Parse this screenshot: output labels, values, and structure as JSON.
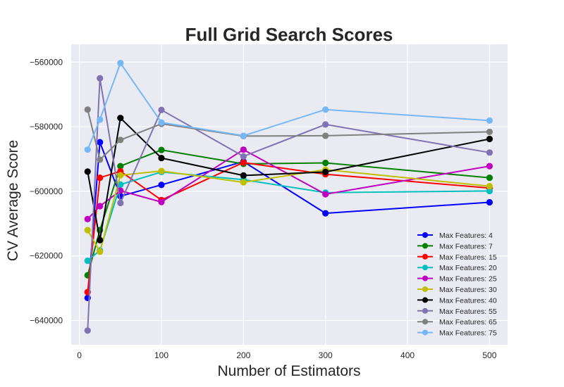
{
  "chart_data": {
    "type": "line",
    "title": "Full Grid Search Scores",
    "xlabel": "Number of Estimators",
    "ylabel": "CV Average Score",
    "xlim": [
      -10,
      522
    ],
    "ylim": [
      -647500,
      -554500
    ],
    "xticks": [
      0,
      100,
      200,
      300,
      400,
      500
    ],
    "xtick_labels": [
      "0",
      "100",
      "200",
      "300",
      "400",
      "500"
    ],
    "yticks": [
      -640000,
      -620000,
      -600000,
      -580000,
      -560000
    ],
    "ytick_labels": [
      "−640000",
      "−620000",
      "−600000",
      "−580000",
      "−560000"
    ],
    "grid": true,
    "legend_position": "lower-right",
    "background": "#eaeaf2",
    "x": [
      10,
      25,
      50,
      100,
      200,
      300,
      500
    ],
    "series": [
      {
        "name": "Max Features: 4",
        "color": "#0000ff",
        "values": [
          -633000,
          -584800,
          -601500,
          -598000,
          -590800,
          -606800,
          -603400
        ]
      },
      {
        "name": "Max Features: 7",
        "color": "#008000",
        "values": [
          -626000,
          -612000,
          -592200,
          -587200,
          -591500,
          -591200,
          -595800
        ]
      },
      {
        "name": "Max Features: 15",
        "color": "#ff0000",
        "values": [
          -631200,
          -595800,
          -593800,
          -602700,
          -591100,
          -594700,
          -599000
        ]
      },
      {
        "name": "Max Features: 20",
        "color": "#00bfbf",
        "values": [
          -621500,
          -618300,
          -597900,
          -594000,
          -596400,
          -600400,
          -599900
        ]
      },
      {
        "name": "Max Features: 25",
        "color": "#bf00bf",
        "values": [
          -608600,
          -604600,
          -599800,
          -603300,
          -587100,
          -600900,
          -592200
        ]
      },
      {
        "name": "Max Features: 30",
        "color": "#bfbf00",
        "values": [
          -612000,
          -618700,
          -595000,
          -593700,
          -597200,
          -593300,
          -598400
        ]
      },
      {
        "name": "Max Features: 40",
        "color": "#000000",
        "values": [
          -593900,
          -615100,
          -577300,
          -589700,
          -595100,
          -594000,
          -583800
        ]
      },
      {
        "name": "Max Features: 55",
        "color": "#8172b2",
        "values": [
          -643100,
          -565000,
          -603600,
          -574800,
          -589200,
          -579300,
          -588000
        ]
      },
      {
        "name": "Max Features: 65",
        "color": "#808080",
        "values": [
          -574700,
          -590200,
          -584100,
          -579100,
          -582900,
          -582800,
          -581600
        ]
      },
      {
        "name": "Max Features: 75",
        "color": "#76b7f5",
        "values": [
          -587100,
          -577800,
          -560300,
          -578700,
          -582800,
          -574700,
          -578100
        ]
      }
    ]
  }
}
